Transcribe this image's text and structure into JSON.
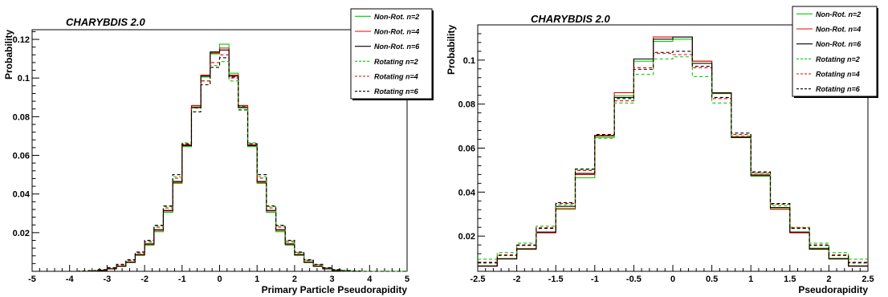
{
  "chart_data": [
    {
      "type": "line",
      "title": "CHARYBDIS 2.0",
      "xlabel": "Primary Particle Pseudorapidity",
      "ylabel": "Probability",
      "xlim": [
        -5,
        5
      ],
      "ylim": [
        0,
        0.125
      ],
      "xticks": [
        -5,
        -4,
        -3,
        -2,
        -1,
        0,
        1,
        2,
        3,
        4,
        5
      ],
      "yticks": [
        0.02,
        0.04,
        0.06,
        0.08,
        0.1,
        0.12
      ],
      "ytick_labels": [
        "0.02",
        "0.04",
        "0.06",
        "0.08",
        "0.1",
        "0.12"
      ],
      "grid": false,
      "legend_position": "top-right",
      "bin_edges": [
        -5,
        -4.75,
        -4.5,
        -4.25,
        -4,
        -3.75,
        -3.5,
        -3.25,
        -3,
        -2.75,
        -2.5,
        -2.25,
        -2,
        -1.75,
        -1.5,
        -1.25,
        -1,
        -0.75,
        -0.5,
        -0.25,
        0,
        0.25,
        0.5,
        0.75,
        1,
        1.25,
        1.5,
        1.75,
        2,
        2.25,
        2.5,
        2.75,
        3,
        3.25,
        3.5,
        3.75,
        4,
        4.25,
        4.5,
        4.75,
        5
      ],
      "series": [
        {
          "name": "Non-Rot. n=2",
          "color": "#00cc00",
          "dashed": false,
          "values": [
            0,
            0,
            0,
            0,
            0,
            0,
            0.0002,
            0.0005,
            0.0012,
            0.0025,
            0.0045,
            0.0082,
            0.0135,
            0.0205,
            0.0305,
            0.0455,
            0.0645,
            0.0845,
            0.1005,
            0.1125,
            0.1175,
            0.1025,
            0.0845,
            0.0645,
            0.0455,
            0.0305,
            0.0205,
            0.0135,
            0.0082,
            0.0045,
            0.0025,
            0.0012,
            0.0005,
            0.0002,
            0,
            0,
            0,
            0,
            0,
            0
          ]
        },
        {
          "name": "Non-Rot. n=4",
          "color": "#ee0000",
          "dashed": false,
          "values": [
            0,
            0,
            0,
            0,
            0,
            0,
            0.0002,
            0.0005,
            0.0013,
            0.0026,
            0.0047,
            0.0085,
            0.014,
            0.0212,
            0.0312,
            0.046,
            0.0655,
            0.0858,
            0.1015,
            0.113,
            0.1155,
            0.1015,
            0.0858,
            0.0655,
            0.046,
            0.0312,
            0.0212,
            0.014,
            0.0085,
            0.0047,
            0.0026,
            0.0013,
            0.0005,
            0.0002,
            0,
            0,
            0,
            0,
            0,
            0
          ]
        },
        {
          "name": "Non-Rot. n=6",
          "color": "#000000",
          "dashed": false,
          "values": [
            0,
            0,
            0,
            0,
            0,
            0,
            0.0002,
            0.0005,
            0.0013,
            0.0027,
            0.0048,
            0.0087,
            0.0142,
            0.0215,
            0.0315,
            0.0465,
            0.065,
            0.085,
            0.101,
            0.1135,
            0.1145,
            0.101,
            0.085,
            0.065,
            0.0465,
            0.0315,
            0.0215,
            0.0142,
            0.0087,
            0.0048,
            0.0027,
            0.0013,
            0.0005,
            0.0002,
            0,
            0,
            0,
            0,
            0,
            0
          ]
        },
        {
          "name": "Rotating n=2",
          "color": "#00cc00",
          "dashed": true,
          "values": [
            0,
            0,
            0,
            0,
            0,
            0.0002,
            0.0004,
            0.0008,
            0.0018,
            0.0035,
            0.0058,
            0.0098,
            0.0158,
            0.0235,
            0.0335,
            0.049,
            0.0665,
            0.0845,
            0.0985,
            0.1065,
            0.1085,
            0.0985,
            0.0845,
            0.0665,
            0.049,
            0.0335,
            0.0235,
            0.0158,
            0.0098,
            0.0058,
            0.0035,
            0.0018,
            0.0008,
            0.0004,
            0.0002,
            0,
            0,
            0,
            0,
            0
          ]
        },
        {
          "name": "Rotating n=4",
          "color": "#ee0000",
          "dashed": true,
          "values": [
            0,
            0,
            0,
            0,
            0,
            0.0002,
            0.0004,
            0.0008,
            0.0017,
            0.0033,
            0.0056,
            0.0095,
            0.0152,
            0.0228,
            0.0328,
            0.0482,
            0.066,
            0.0845,
            0.0985,
            0.108,
            0.112,
            0.1,
            0.0855,
            0.066,
            0.0482,
            0.0328,
            0.0228,
            0.0152,
            0.0095,
            0.0056,
            0.0033,
            0.0017,
            0.0008,
            0.0004,
            0.0002,
            0,
            0,
            0,
            0,
            0
          ]
        },
        {
          "name": "Rotating n=6",
          "color": "#000000",
          "dashed": true,
          "values": [
            0,
            0,
            0,
            0,
            0,
            0.0002,
            0.0004,
            0.0009,
            0.0019,
            0.0036,
            0.006,
            0.01,
            0.016,
            0.0238,
            0.0338,
            0.05,
            0.0658,
            0.0825,
            0.0965,
            0.1055,
            0.1105,
            0.1005,
            0.0835,
            0.066,
            0.05,
            0.0338,
            0.0238,
            0.016,
            0.01,
            0.006,
            0.0036,
            0.0019,
            0.0009,
            0.0004,
            0.0002,
            0,
            0,
            0,
            0,
            0
          ]
        }
      ]
    },
    {
      "type": "line",
      "title": "CHARYBDIS 2.0",
      "xlabel": "Pseudorapidity",
      "ylabel": "Probability",
      "xlim": [
        -2.5,
        2.5
      ],
      "ylim": [
        0.004,
        0.116
      ],
      "xticks": [
        -2.5,
        -2,
        -1.5,
        -1,
        -0.5,
        0,
        0.5,
        1,
        1.5,
        2,
        2.5
      ],
      "yticks": [
        0.02,
        0.04,
        0.06,
        0.08,
        0.1
      ],
      "ytick_labels": [
        "0.02",
        "0.04",
        "0.06",
        "0.08",
        "0.1"
      ],
      "grid": false,
      "legend_position": "top-right",
      "bin_edges": [
        -2.5,
        -2.25,
        -2,
        -1.75,
        -1.5,
        -1.25,
        -1,
        -0.75,
        -0.5,
        -0.25,
        0,
        0.25,
        0.5,
        0.75,
        1,
        1.25,
        1.5,
        1.75,
        2,
        2.25,
        2.5
      ],
      "series": [
        {
          "name": "Non-Rot. n=2",
          "color": "#00cc00",
          "dashed": false,
          "values": [
            0.0065,
            0.0098,
            0.0143,
            0.0218,
            0.0322,
            0.0465,
            0.0648,
            0.0838,
            0.0995,
            0.1085,
            0.1095,
            0.0995,
            0.0848,
            0.0648,
            0.0472,
            0.0325,
            0.0218,
            0.0145,
            0.0099,
            0.0065
          ]
        },
        {
          "name": "Non-Rot. n=4",
          "color": "#ee0000",
          "dashed": false,
          "values": [
            0.0063,
            0.0096,
            0.014,
            0.0215,
            0.0325,
            0.048,
            0.0655,
            0.0852,
            0.1005,
            0.1105,
            0.1105,
            0.0995,
            0.0852,
            0.0652,
            0.0475,
            0.0322,
            0.0215,
            0.014,
            0.0096,
            0.0063
          ]
        },
        {
          "name": "Non-Rot. n=6",
          "color": "#000000",
          "dashed": false,
          "values": [
            0.0064,
            0.0097,
            0.0142,
            0.0218,
            0.0335,
            0.0485,
            0.0658,
            0.083,
            0.1005,
            0.1095,
            0.1105,
            0.0985,
            0.085,
            0.0648,
            0.0478,
            0.033,
            0.0218,
            0.0142,
            0.0097,
            0.0064
          ]
        },
        {
          "name": "Rotating n=2",
          "color": "#00cc00",
          "dashed": true,
          "values": [
            0.0095,
            0.0125,
            0.0168,
            0.0245,
            0.0342,
            0.0502,
            0.0645,
            0.0805,
            0.0935,
            0.1005,
            0.1015,
            0.0925,
            0.0805,
            0.0655,
            0.0485,
            0.0338,
            0.024,
            0.0168,
            0.0125,
            0.0095
          ]
        },
        {
          "name": "Rotating n=4",
          "color": "#ee0000",
          "dashed": true,
          "values": [
            0.0082,
            0.0115,
            0.016,
            0.0238,
            0.0348,
            0.0498,
            0.0658,
            0.0815,
            0.0965,
            0.103,
            0.1025,
            0.0965,
            0.0825,
            0.0662,
            0.0488,
            0.0345,
            0.0238,
            0.016,
            0.0115,
            0.0082
          ]
        },
        {
          "name": "Rotating n=6",
          "color": "#000000",
          "dashed": true,
          "values": [
            0.0078,
            0.0112,
            0.0158,
            0.0235,
            0.0352,
            0.0505,
            0.0662,
            0.0825,
            0.0958,
            0.1035,
            0.104,
            0.0972,
            0.083,
            0.0668,
            0.0492,
            0.0348,
            0.0235,
            0.0158,
            0.0112,
            0.0078
          ]
        }
      ]
    }
  ]
}
